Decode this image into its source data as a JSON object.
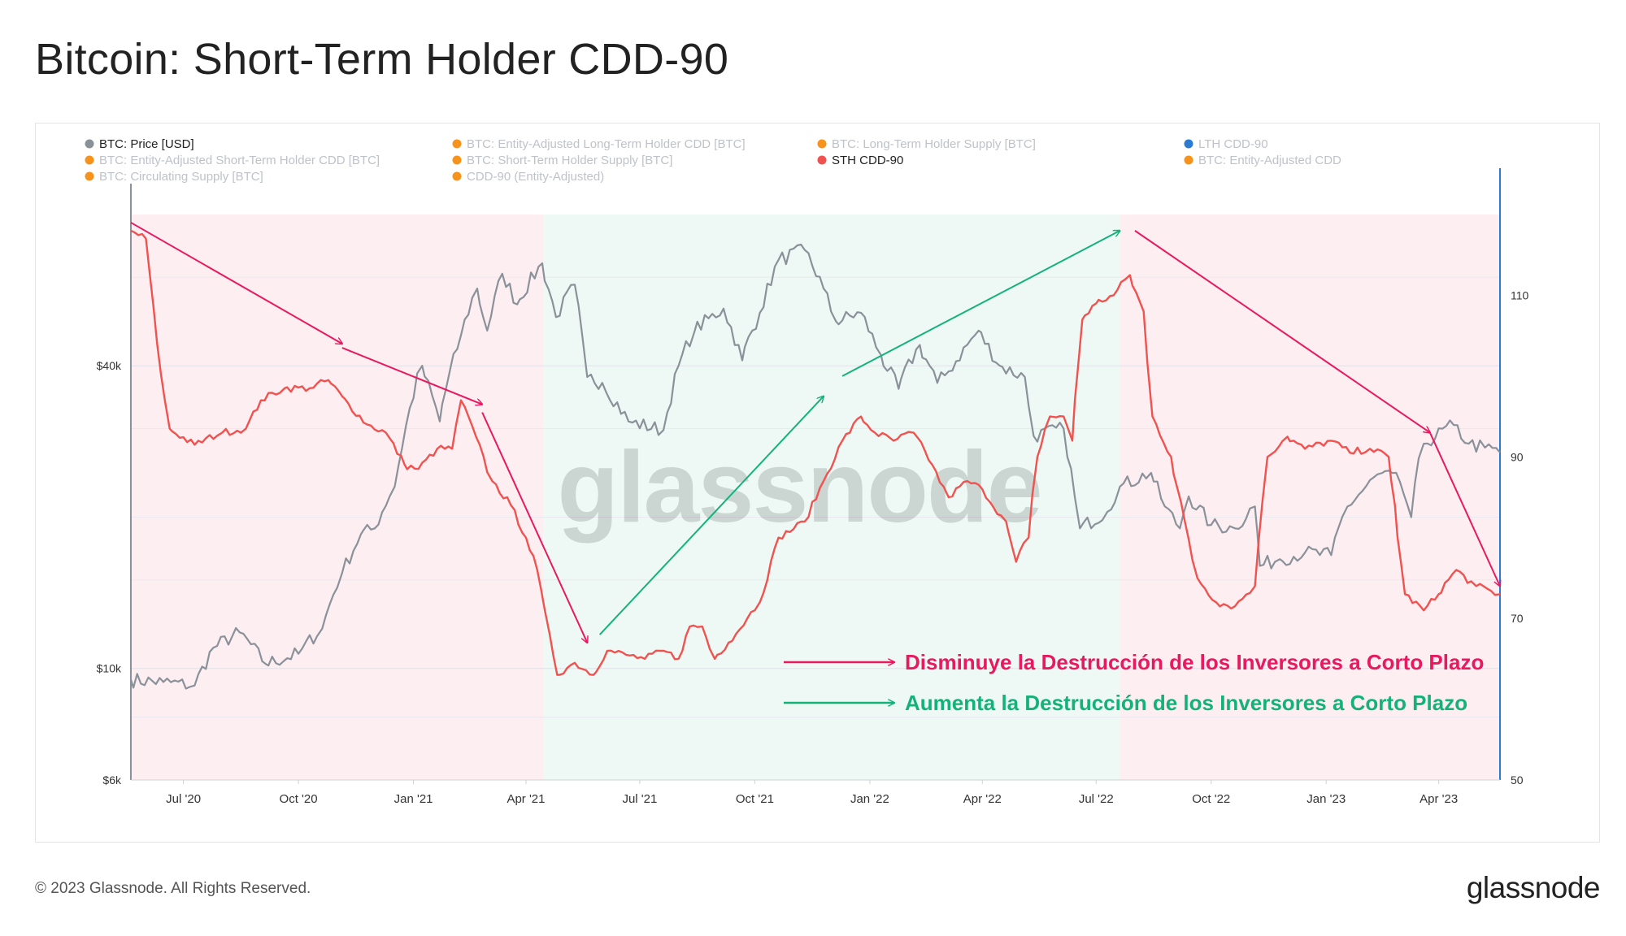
{
  "title": "Bitcoin: Short-Term Holder CDD-90",
  "footer": {
    "copyright": "© 2023 Glassnode. All Rights Reserved.",
    "brand": "glassnode"
  },
  "watermark": "glassnode",
  "legend": [
    {
      "label": "BTC: Price [USD]",
      "color": "#8a9199",
      "active": true
    },
    {
      "label": "BTC: Entity-Adjusted Long-Term Holder CDD [BTC]",
      "color": "#f7931a",
      "active": false
    },
    {
      "label": "BTC: Long-Term Holder Supply [BTC]",
      "color": "#f7931a",
      "active": false
    },
    {
      "label": "LTH CDD-90",
      "color": "#2b7bd3",
      "active": false
    },
    {
      "label": "BTC: Entity-Adjusted Short-Term Holder CDD [BTC]",
      "color": "#f7931a",
      "active": false
    },
    {
      "label": "BTC: Short-Term Holder Supply [BTC]",
      "color": "#f7931a",
      "active": false
    },
    {
      "label": "STH CDD-90",
      "color": "#f0524f",
      "active": true
    },
    {
      "label": "BTC: Entity-Adjusted CDD",
      "color": "#f7931a",
      "active": false
    },
    {
      "label": "BTC: Circulating Supply [BTC]",
      "color": "#f7931a",
      "active": false
    },
    {
      "label": "CDD-90 (Entity-Adjusted)",
      "color": "#f7931a",
      "active": false
    }
  ],
  "annotations": [
    {
      "text": "Disminuye la Destrucción de los Inversores a Corto Plazo",
      "color": "#e8195f"
    },
    {
      "text": "Aumenta la Destrucción de los Inversores a Corto Plazo",
      "color": "#14b27a"
    }
  ],
  "chart_data": {
    "type": "line",
    "x_axis": {
      "type": "date",
      "range": [
        "2020-05-20",
        "2023-05-20"
      ],
      "tick_labels": [
        "Jul '20",
        "Oct '20",
        "Jan '21",
        "Apr '21",
        "Jul '21",
        "Oct '21",
        "Jan '22",
        "Apr '22",
        "Jul '22",
        "Oct '22",
        "Jan '23",
        "Apr '23"
      ]
    },
    "y_left": {
      "label": "",
      "scale": "log",
      "tick_labels": [
        "$6k",
        "$10k",
        "$40k"
      ],
      "range": [
        6000,
        80000
      ]
    },
    "y_right": {
      "label": "",
      "scale": "linear",
      "tick_labels": [
        "50",
        "70",
        "90",
        "110"
      ],
      "range": [
        50,
        120
      ]
    },
    "shaded_regions": [
      {
        "start": "2020-05-20",
        "end": "2021-04-15",
        "color": "#fdeef2"
      },
      {
        "start": "2021-04-15",
        "end": "2022-07-20",
        "color": "#eef9f5"
      },
      {
        "start": "2022-07-20",
        "end": "2023-05-20",
        "color": "#fdeef2"
      }
    ],
    "series": [
      {
        "name": "BTC: Price [USD]",
        "axis": "left",
        "color": "#8a9199",
        "points": [
          [
            "2020-05-20",
            9500
          ],
          [
            "2020-06-15",
            9400
          ],
          [
            "2020-07-10",
            9250
          ],
          [
            "2020-07-25",
            11000
          ],
          [
            "2020-08-15",
            11800
          ],
          [
            "2020-09-05",
            10200
          ],
          [
            "2020-10-01",
            10700
          ],
          [
            "2020-10-20",
            12000
          ],
          [
            "2020-11-05",
            15500
          ],
          [
            "2020-11-20",
            18500
          ],
          [
            "2020-12-01",
            19000
          ],
          [
            "2020-12-17",
            23000
          ],
          [
            "2021-01-08",
            40000
          ],
          [
            "2021-01-22",
            31000
          ],
          [
            "2021-02-08",
            46000
          ],
          [
            "2021-02-21",
            57000
          ],
          [
            "2021-03-01",
            47000
          ],
          [
            "2021-03-13",
            61000
          ],
          [
            "2021-03-25",
            53000
          ],
          [
            "2021-04-14",
            64000
          ],
          [
            "2021-04-25",
            50000
          ],
          [
            "2021-05-10",
            58000
          ],
          [
            "2021-05-20",
            38000
          ],
          [
            "2021-06-01",
            37000
          ],
          [
            "2021-06-22",
            31000
          ],
          [
            "2021-07-20",
            29800
          ],
          [
            "2021-08-01",
            40000
          ],
          [
            "2021-08-14",
            47000
          ],
          [
            "2021-09-06",
            52000
          ],
          [
            "2021-09-21",
            41000
          ],
          [
            "2021-10-05",
            51000
          ],
          [
            "2021-10-20",
            65000
          ],
          [
            "2021-11-10",
            68000
          ],
          [
            "2021-11-25",
            57000
          ],
          [
            "2021-12-05",
            49000
          ],
          [
            "2021-12-25",
            51000
          ],
          [
            "2022-01-10",
            42000
          ],
          [
            "2022-01-24",
            36000
          ],
          [
            "2022-02-10",
            44000
          ],
          [
            "2022-02-24",
            37000
          ],
          [
            "2022-03-05",
            39000
          ],
          [
            "2022-03-29",
            47000
          ],
          [
            "2022-04-15",
            40000
          ],
          [
            "2022-05-05",
            38000
          ],
          [
            "2022-05-12",
            29000
          ],
          [
            "2022-06-05",
            30000
          ],
          [
            "2022-06-18",
            19000
          ],
          [
            "2022-07-10",
            20500
          ],
          [
            "2022-07-20",
            23000
          ],
          [
            "2022-08-14",
            24500
          ],
          [
            "2022-08-25",
            21000
          ],
          [
            "2022-09-06",
            19000
          ],
          [
            "2022-09-13",
            22000
          ],
          [
            "2022-10-01",
            19300
          ],
          [
            "2022-10-20",
            19000
          ],
          [
            "2022-11-05",
            21000
          ],
          [
            "2022-11-09",
            16000
          ],
          [
            "2022-11-25",
            16500
          ],
          [
            "2022-12-15",
            17000
          ],
          [
            "2023-01-05",
            16800
          ],
          [
            "2023-01-18",
            21000
          ],
          [
            "2023-02-15",
            24500
          ],
          [
            "2023-03-01",
            23500
          ],
          [
            "2023-03-10",
            20000
          ],
          [
            "2023-03-20",
            28000
          ],
          [
            "2023-04-13",
            30500
          ],
          [
            "2023-04-25",
            28000
          ],
          [
            "2023-05-08",
            27500
          ],
          [
            "2023-05-20",
            26900
          ]
        ]
      },
      {
        "name": "STH CDD-90",
        "axis": "right",
        "color": "#f0524f",
        "points": [
          [
            "2020-05-20",
            118
          ],
          [
            "2020-06-01",
            117
          ],
          [
            "2020-06-10",
            104
          ],
          [
            "2020-06-20",
            93.5
          ],
          [
            "2020-07-10",
            91.5
          ],
          [
            "2020-08-01",
            93
          ],
          [
            "2020-08-20",
            93.5
          ],
          [
            "2020-09-01",
            97
          ],
          [
            "2020-09-20",
            98.5
          ],
          [
            "2020-10-10",
            98.5
          ],
          [
            "2020-10-25",
            99.5
          ],
          [
            "2020-11-05",
            97.5
          ],
          [
            "2020-11-25",
            94
          ],
          [
            "2020-12-10",
            93
          ],
          [
            "2020-12-25",
            89
          ],
          [
            "2021-01-05",
            88.5
          ],
          [
            "2021-01-20",
            91
          ],
          [
            "2021-02-01",
            91
          ],
          [
            "2021-02-08",
            97
          ],
          [
            "2021-02-20",
            92.5
          ],
          [
            "2021-03-05",
            87
          ],
          [
            "2021-03-20",
            84
          ],
          [
            "2021-04-01",
            80
          ],
          [
            "2021-04-10",
            76
          ],
          [
            "2021-04-20",
            68
          ],
          [
            "2021-04-26",
            63
          ],
          [
            "2021-05-10",
            64.5
          ],
          [
            "2021-05-25",
            63
          ],
          [
            "2021-06-05",
            66
          ],
          [
            "2021-06-20",
            65.5
          ],
          [
            "2021-07-05",
            65
          ],
          [
            "2021-07-20",
            66
          ],
          [
            "2021-08-01",
            65
          ],
          [
            "2021-08-10",
            69
          ],
          [
            "2021-08-20",
            69
          ],
          [
            "2021-08-30",
            65
          ],
          [
            "2021-09-10",
            67
          ],
          [
            "2021-09-25",
            70
          ],
          [
            "2021-10-05",
            72
          ],
          [
            "2021-10-20",
            80
          ],
          [
            "2021-11-10",
            82
          ],
          [
            "2021-11-25",
            87
          ],
          [
            "2021-12-10",
            92
          ],
          [
            "2021-12-25",
            95
          ],
          [
            "2022-01-05",
            93
          ],
          [
            "2022-01-20",
            92
          ],
          [
            "2022-02-05",
            93
          ],
          [
            "2022-02-20",
            89
          ],
          [
            "2022-03-05",
            85
          ],
          [
            "2022-03-20",
            87
          ],
          [
            "2022-04-01",
            86
          ],
          [
            "2022-04-20",
            82
          ],
          [
            "2022-04-28",
            77
          ],
          [
            "2022-05-08",
            80
          ],
          [
            "2022-05-15",
            90
          ],
          [
            "2022-05-25",
            95
          ],
          [
            "2022-06-05",
            95
          ],
          [
            "2022-06-12",
            92
          ],
          [
            "2022-06-20",
            107
          ],
          [
            "2022-07-01",
            109
          ],
          [
            "2022-07-15",
            110
          ],
          [
            "2022-07-28",
            112.5
          ],
          [
            "2022-08-08",
            108
          ],
          [
            "2022-08-15",
            95
          ],
          [
            "2022-08-30",
            90
          ],
          [
            "2022-09-10",
            82
          ],
          [
            "2022-09-20",
            75
          ],
          [
            "2022-10-05",
            72
          ],
          [
            "2022-10-20",
            71.5
          ],
          [
            "2022-11-05",
            74
          ],
          [
            "2022-11-15",
            90
          ],
          [
            "2022-12-01",
            92.5
          ],
          [
            "2022-12-15",
            91
          ],
          [
            "2023-01-05",
            92
          ],
          [
            "2023-01-20",
            90.5
          ],
          [
            "2023-02-05",
            91
          ],
          [
            "2023-02-20",
            90
          ],
          [
            "2023-02-25",
            84
          ],
          [
            "2023-03-05",
            73
          ],
          [
            "2023-03-20",
            71
          ],
          [
            "2023-04-01",
            73
          ],
          [
            "2023-04-15",
            76
          ],
          [
            "2023-05-01",
            74
          ],
          [
            "2023-05-20",
            73
          ]
        ]
      }
    ],
    "trend_arrows": [
      {
        "color": "#e8195f",
        "points": [
          [
            "2020-05-20",
            119
          ],
          [
            "2020-11-05",
            104
          ]
        ]
      },
      {
        "color": "#e8195f",
        "points": [
          [
            "2020-11-05",
            103.5
          ],
          [
            "2021-02-25",
            96.5
          ]
        ]
      },
      {
        "color": "#e8195f",
        "points": [
          [
            "2021-02-25",
            95.5
          ],
          [
            "2021-05-20",
            67
          ]
        ]
      },
      {
        "color": "#14b27a",
        "points": [
          [
            "2021-05-30",
            68
          ],
          [
            "2021-11-25",
            97.5
          ]
        ]
      },
      {
        "color": "#14b27a",
        "points": [
          [
            "2021-12-10",
            100
          ],
          [
            "2022-07-20",
            118
          ]
        ]
      },
      {
        "color": "#e8195f",
        "points": [
          [
            "2022-08-01",
            118
          ],
          [
            "2023-03-25",
            93
          ]
        ]
      },
      {
        "color": "#e8195f",
        "points": [
          [
            "2023-03-25",
            93
          ],
          [
            "2023-05-20",
            74
          ]
        ]
      }
    ]
  }
}
